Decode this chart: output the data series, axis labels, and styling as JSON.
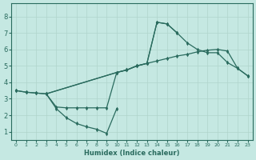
{
  "xlabel": "Humidex (Indice chaleur)",
  "bg_color": "#c5e8e2",
  "line_color": "#2a6b5e",
  "grid_color": "#b0d4cc",
  "xlim": [
    -0.5,
    23.5
  ],
  "ylim": [
    0.5,
    8.8
  ],
  "xticks": [
    0,
    1,
    2,
    3,
    4,
    5,
    6,
    7,
    8,
    9,
    10,
    11,
    12,
    13,
    14,
    15,
    16,
    17,
    18,
    19,
    20,
    21,
    22,
    23
  ],
  "yticks": [
    1,
    2,
    3,
    4,
    5,
    6,
    7,
    8
  ],
  "lines": [
    {
      "x": [
        0,
        1,
        2,
        3,
        10,
        11,
        12,
        13,
        14,
        15,
        16,
        17,
        18,
        19,
        20,
        21,
        22,
        23
      ],
      "y": [
        3.5,
        3.4,
        3.35,
        3.3,
        4.6,
        4.75,
        5.0,
        5.15,
        5.3,
        5.45,
        5.6,
        5.7,
        5.85,
        5.95,
        6.0,
        5.9,
        4.85,
        4.4
      ]
    },
    {
      "x": [
        0,
        1,
        2,
        3,
        10,
        11,
        12,
        13,
        14,
        15,
        16,
        17,
        18,
        19,
        20,
        21,
        22,
        23
      ],
      "y": [
        3.5,
        3.4,
        3.35,
        3.3,
        4.6,
        4.75,
        5.0,
        5.15,
        7.65,
        7.55,
        7.0,
        6.4,
        6.0,
        5.8,
        5.8,
        5.2,
        4.85,
        4.4
      ]
    },
    {
      "x": [
        3,
        4,
        5,
        6,
        7,
        8,
        9,
        10,
        11,
        12,
        13,
        14,
        15,
        16
      ],
      "y": [
        3.3,
        2.5,
        2.45,
        2.45,
        2.45,
        2.45,
        2.45,
        4.6,
        4.75,
        5.0,
        5.15,
        7.65,
        7.55,
        7.0
      ]
    },
    {
      "x": [
        3,
        4,
        5,
        6,
        7,
        8,
        9,
        10
      ],
      "y": [
        3.3,
        2.4,
        1.85,
        1.5,
        1.3,
        1.15,
        0.9,
        2.4
      ]
    }
  ]
}
